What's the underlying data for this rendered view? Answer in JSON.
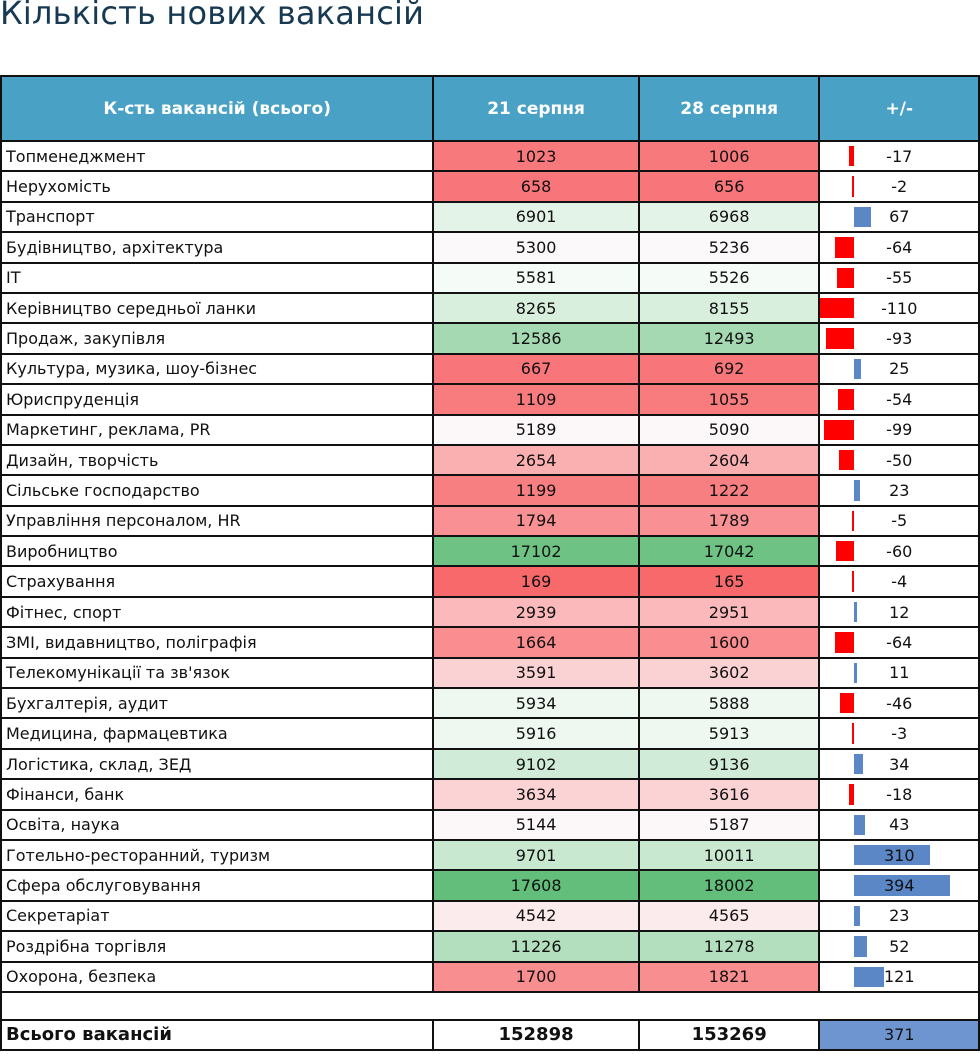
{
  "title": "Кількість нових вакансій",
  "header": {
    "category": "К-сть вакансій (всього)",
    "date1": "21 серпня",
    "date2": "28 серпня",
    "diff": "+/-"
  },
  "rows": [
    {
      "name": "Топменеджмент",
      "v1": "1023",
      "v2": "1006",
      "diff": "-17",
      "c1": "#f8797b",
      "c2": "#f8797b"
    },
    {
      "name": "Нерухомість",
      "v1": "658",
      "v2": "656",
      "diff": "-2",
      "c1": "#f8767a",
      "c2": "#f8767a"
    },
    {
      "name": "Транспорт",
      "v1": "6901",
      "v2": "6968",
      "diff": "67",
      "c1": "#e4f3e8",
      "c2": "#e4f3e8"
    },
    {
      "name": "Будівництво, архітектура",
      "v1": "5300",
      "v2": "5236",
      "diff": "-64",
      "c1": "#fbf9fa",
      "c2": "#fbf9fa"
    },
    {
      "name": "IT",
      "v1": "5581",
      "v2": "5526",
      "diff": "-55",
      "c1": "#f5fbf7",
      "c2": "#f5fbf7"
    },
    {
      "name": "Керівництво середньої ланки",
      "v1": "8265",
      "v2": "8155",
      "diff": "-110",
      "c1": "#d8efde",
      "c2": "#d8efde"
    },
    {
      "name": "Продаж, закупівля",
      "v1": "12586",
      "v2": "12493",
      "diff": "-93",
      "c1": "#a5d9b2",
      "c2": "#a5d9b2"
    },
    {
      "name": "Культура, музика, шоу-бізнес",
      "v1": "667",
      "v2": "692",
      "diff": "25",
      "c1": "#f8767a",
      "c2": "#f8767a"
    },
    {
      "name": "Юриспруденція",
      "v1": "1109",
      "v2": "1055",
      "diff": "-54",
      "c1": "#f87b7d",
      "c2": "#f87b7d"
    },
    {
      "name": "Маркетинг, реклама, PR",
      "v1": "5189",
      "v2": "5090",
      "diff": "-99",
      "c1": "#fcf8f9",
      "c2": "#fcf8f9"
    },
    {
      "name": "Дизайн, творчість",
      "v1": "2654",
      "v2": "2604",
      "diff": "-50",
      "c1": "#faafb1",
      "c2": "#faafb1"
    },
    {
      "name": "Сільське господарство",
      "v1": "1199",
      "v2": "1222",
      "diff": "23",
      "c1": "#f87f81",
      "c2": "#f87f81"
    },
    {
      "name": "Управління персоналом, HR",
      "v1": "1794",
      "v2": "1789",
      "diff": "-5",
      "c1": "#f99194",
      "c2": "#f99194"
    },
    {
      "name": "Виробництво",
      "v1": "17102",
      "v2": "17042",
      "diff": "-60",
      "c1": "#6ec284",
      "c2": "#6ec284"
    },
    {
      "name": "Страхування",
      "v1": "169",
      "v2": "165",
      "diff": "-4",
      "c1": "#f8696b",
      "c2": "#f8696b"
    },
    {
      "name": "Фітнес, спорт",
      "v1": "2939",
      "v2": "2951",
      "diff": "12",
      "c1": "#fbb9bb",
      "c2": "#fbb9bb"
    },
    {
      "name": "ЗМІ, видавництво, поліграфія",
      "v1": "1664",
      "v2": "1600",
      "diff": "-64",
      "c1": "#f98d8f",
      "c2": "#f98d8f"
    },
    {
      "name": "Телекомунікації та зв'язок",
      "v1": "3591",
      "v2": "3602",
      "diff": "11",
      "c1": "#fbd2d4",
      "c2": "#fbd2d4"
    },
    {
      "name": "Бухгалтерія, аудит",
      "v1": "5934",
      "v2": "5888",
      "diff": "-46",
      "c1": "#eef8f1",
      "c2": "#eef8f1"
    },
    {
      "name": "Медицина, фармацевтика",
      "v1": "5916",
      "v2": "5913",
      "diff": "-3",
      "c1": "#eef8f1",
      "c2": "#eef8f1"
    },
    {
      "name": "Логістика, склад, ЗЕД",
      "v1": "9102",
      "v2": "9136",
      "diff": "34",
      "c1": "#d0ebd7",
      "c2": "#d0ebd7"
    },
    {
      "name": "Фінанси, банк",
      "v1": "3634",
      "v2": "3616",
      "diff": "-18",
      "c1": "#fbd3d5",
      "c2": "#fbd3d5"
    },
    {
      "name": "Освіта, наука",
      "v1": "5144",
      "v2": "5187",
      "diff": "43",
      "c1": "#fcf8f9",
      "c2": "#fcf8f9"
    },
    {
      "name": "Готельно-ресторанний, туризм",
      "v1": "9701",
      "v2": "10011",
      "diff": "310",
      "c1": "#c8e8d0",
      "c2": "#c8e8d0"
    },
    {
      "name": "Сфера обслуговування",
      "v1": "17608",
      "v2": "18002",
      "diff": "394",
      "c1": "#63be7b",
      "c2": "#63be7b"
    },
    {
      "name": "Секретаріат",
      "v1": "4542",
      "v2": "4565",
      "diff": "23",
      "c1": "#fcebed",
      "c2": "#fcebed"
    },
    {
      "name": "Роздрібна торгівля",
      "v1": "11226",
      "v2": "11278",
      "diff": "52",
      "c1": "#b3dfbe",
      "c2": "#b3dfbe"
    },
    {
      "name": "Охорона, безпека",
      "v1": "1700",
      "v2": "1821",
      "diff": "121",
      "c1": "#f98e90",
      "c2": "#f98e90"
    }
  ],
  "total": {
    "label": "Всього вакансій",
    "v1": "152898",
    "v2": "153269",
    "diff": "371"
  },
  "colors": {
    "header_bg": "#4aa1c6",
    "title": "#173a52",
    "bar_positive": "#5b87c7",
    "bar_negative": "#ff0000"
  }
}
